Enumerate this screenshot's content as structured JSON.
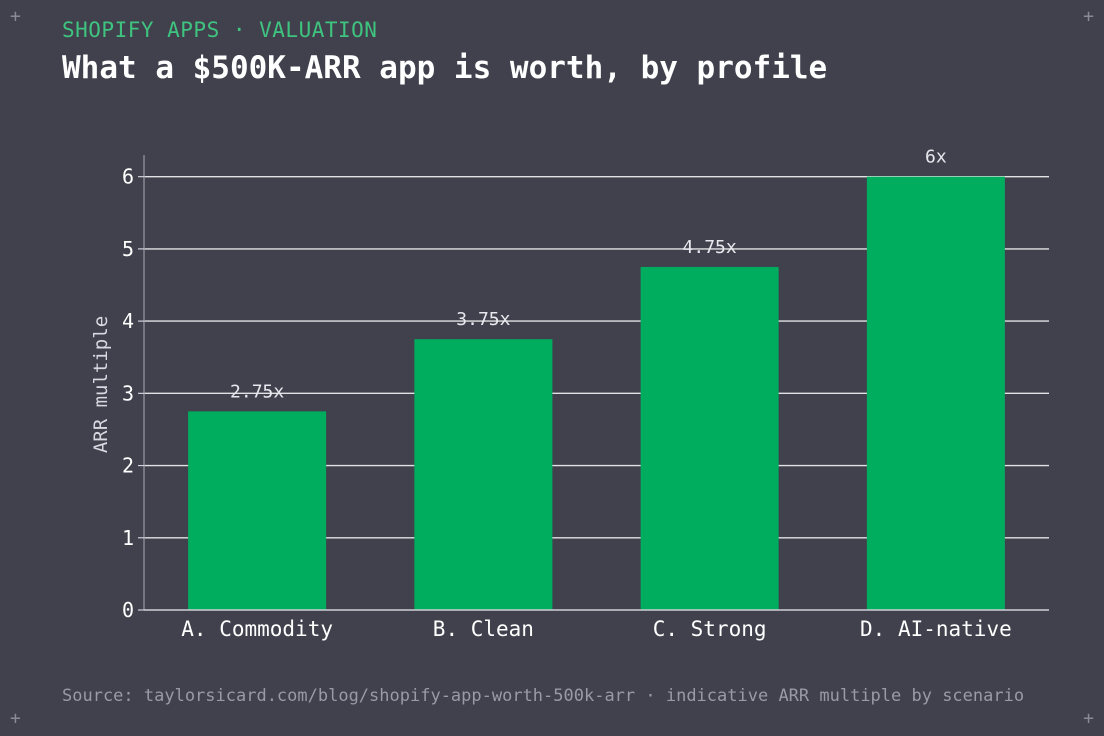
{
  "header": {
    "kicker": "SHOPIFY APPS · VALUATION",
    "title": "What a $500K-ARR app is worth, by profile"
  },
  "footer": {
    "source": "Source: taylorsicard.com/blog/shopify-app-worth-500k-arr · indicative ARR multiple by scenario"
  },
  "decor": {
    "corner_glyph": "+"
  },
  "colors": {
    "background": "#41414d",
    "bar": "#00ad5f",
    "accent": "#3fc480",
    "grid": "#ffffff",
    "text": "#ffffff"
  },
  "chart_data": {
    "type": "bar",
    "categories": [
      "A. Commodity",
      "B. Clean",
      "C. Strong",
      "D. AI-native"
    ],
    "values": [
      2.75,
      3.75,
      4.75,
      6
    ],
    "value_labels": [
      "2.75x",
      "3.75x",
      "4.75x",
      "6x"
    ],
    "ylabel": "ARR multiple",
    "xlabel": "",
    "ylim": [
      0,
      6.3
    ],
    "yticks": [
      0,
      1,
      2,
      3,
      4,
      5,
      6
    ],
    "grid": true,
    "legend": "none"
  }
}
